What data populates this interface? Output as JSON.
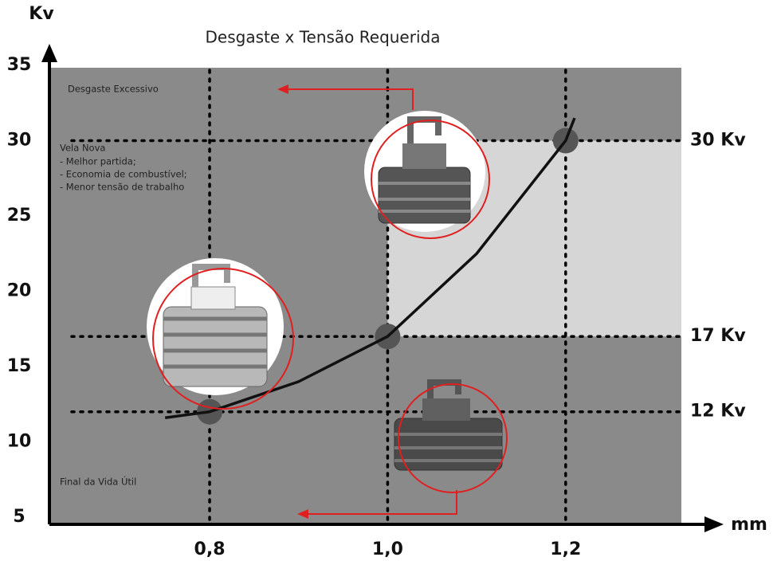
{
  "chart_data": {
    "type": "line",
    "title": "Desgaste x Tensão Requerida",
    "y_label": "Kv",
    "x_label": "mm",
    "xlim": [
      0.62,
      1.33
    ],
    "ylim": [
      5,
      35
    ],
    "xticks": [
      {
        "value": 0.8,
        "label": "0,8"
      },
      {
        "value": 1.0,
        "label": "1,0"
      },
      {
        "value": 1.2,
        "label": "1,2"
      }
    ],
    "yticks": [
      5,
      10,
      15,
      20,
      25,
      30,
      35
    ],
    "levels": [
      {
        "value": 30,
        "label": "30 Kv"
      },
      {
        "value": 17,
        "label": "17 Kv"
      },
      {
        "value": 12,
        "label": "12 Kv"
      }
    ],
    "curve": {
      "color": "#111111",
      "x": [
        0.75,
        0.8,
        0.9,
        1.0,
        1.1,
        1.2,
        1.21
      ],
      "y": [
        11.6,
        12,
        14,
        17,
        22.5,
        30,
        31.5
      ]
    },
    "markers": {
      "color": "#555555",
      "x": [
        0.8,
        1.0,
        1.2
      ],
      "y": [
        12,
        17,
        30
      ]
    },
    "shade": {
      "color": "#d6d6d6",
      "x0": 1.0,
      "y": [
        17,
        30
      ]
    },
    "annotations": [
      "Desgaste Excessivo",
      "Vela Nova",
      "- Melhor partida;",
      "- Economia de combustível;",
      "- Menor tensão de trabalho",
      "Final da Vida Útil"
    ]
  }
}
